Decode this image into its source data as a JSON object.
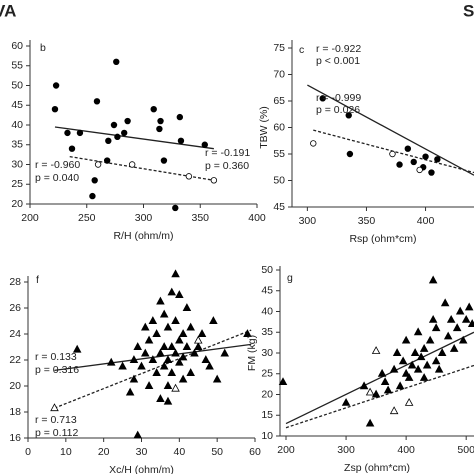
{
  "header": {
    "left": "VA",
    "right": "S"
  },
  "chart_data": [
    {
      "type": "scatter",
      "panel_label": "b",
      "xlabel": "R/H (ohm/m)",
      "xlim": [
        200,
        400
      ],
      "xticks": [
        200,
        250,
        300,
        350,
        400
      ],
      "ylim": [
        20,
        60
      ],
      "yticks": [
        20,
        25,
        30,
        35,
        40,
        45,
        50,
        55,
        60
      ],
      "series": [
        {
          "marker": "circle",
          "filled": true,
          "color": "#000000",
          "x": [
            222,
            223,
            233,
            237,
            244,
            255,
            257,
            259,
            268,
            269,
            274,
            276,
            277,
            283,
            286,
            309,
            314,
            315,
            318,
            328,
            332,
            333,
            354
          ],
          "values": [
            44,
            50,
            38,
            34,
            38,
            22,
            26,
            46,
            31,
            36,
            40,
            56,
            37,
            38,
            41,
            44,
            39,
            41,
            31,
            19,
            42,
            36,
            35
          ]
        },
        {
          "marker": "circle",
          "filled": false,
          "color": "#000000",
          "x": [
            260,
            290,
            340,
            362
          ],
          "values": [
            30,
            30,
            27,
            26
          ]
        }
      ],
      "fits": [
        {
          "style": "solid",
          "x": [
            222,
            362
          ],
          "values": [
            39.5,
            34
          ]
        },
        {
          "style": "dashed",
          "x": [
            235,
            362
          ],
          "values": [
            32,
            26
          ]
        }
      ],
      "annotations": [
        "r = -0.191",
        "p = 0.360",
        "r = -0.960",
        "p = 0.040"
      ]
    },
    {
      "type": "scatter",
      "panel_label": "c",
      "xlabel": "Rsp (ohm*cm)",
      "ylabel": "TBW (%)",
      "xlim": [
        287,
        441
      ],
      "xticks": [
        300,
        350,
        400
      ],
      "ylim": [
        45,
        75
      ],
      "yticks": [
        45,
        50,
        55,
        60,
        65,
        70,
        75
      ],
      "series": [
        {
          "marker": "circle",
          "filled": true,
          "color": "#000000",
          "x": [
            313,
            335,
            336,
            378,
            385,
            390,
            398,
            400,
            405,
            410
          ],
          "values": [
            65.5,
            62.3,
            55,
            53,
            56,
            53.5,
            52.5,
            54.5,
            51.5,
            54
          ]
        },
        {
          "marker": "circle",
          "filled": false,
          "color": "#000000",
          "x": [
            305,
            372,
            395
          ],
          "values": [
            57,
            55,
            52
          ]
        }
      ],
      "fits": [
        {
          "style": "solid",
          "x": [
            300,
            441
          ],
          "values": [
            68,
            51
          ]
        },
        {
          "style": "dashed",
          "x": [
            305,
            441
          ],
          "values": [
            59.5,
            51.5
          ]
        }
      ],
      "annotations": [
        "r = -0.922",
        "p < 0.001",
        "r = -0.999",
        "p = 0.026"
      ]
    },
    {
      "type": "scatter",
      "panel_label": "f",
      "xlabel": "Xc/H (ohm/m)",
      "xlim": [
        0,
        60
      ],
      "xticks": [
        0,
        10,
        20,
        30,
        40,
        50,
        60
      ],
      "ylim": [
        16,
        28
      ],
      "yticks": [
        16,
        18,
        20,
        22,
        24,
        26,
        28
      ],
      "series": [
        {
          "marker": "triangle",
          "filled": true,
          "color": "#000000",
          "x": [
            13,
            22,
            25,
            27,
            28,
            28,
            29,
            29,
            30,
            31,
            31,
            32,
            32,
            33,
            33,
            34,
            34,
            35,
            35,
            35,
            36,
            36,
            36,
            37,
            37,
            37,
            38,
            38,
            38,
            39,
            39,
            39,
            40,
            40,
            40,
            41,
            41,
            41,
            42,
            42,
            43,
            43,
            44,
            45,
            46,
            47,
            48,
            49,
            50,
            52,
            58,
            37
          ],
          "values": [
            22.8,
            21.8,
            21.5,
            19.5,
            22,
            20.5,
            23,
            16.2,
            21.5,
            22.5,
            24.5,
            20,
            23.5,
            22,
            25,
            21,
            24,
            22.5,
            19,
            26.5,
            23,
            21.5,
            25.5,
            22,
            20,
            24.5,
            27.2,
            23,
            21,
            22.5,
            28.6,
            25,
            23.5,
            21.8,
            27,
            20.5,
            24,
            22.2,
            23,
            26,
            21,
            24.5,
            22.5,
            23,
            24,
            22,
            21.5,
            25,
            20.5,
            22.5,
            24,
            18.8
          ]
        },
        {
          "marker": "triangle",
          "filled": false,
          "color": "#000000",
          "x": [
            7,
            45,
            39
          ],
          "values": [
            18.3,
            23.5,
            19.8
          ]
        }
      ],
      "fits": [
        {
          "style": "solid",
          "x": [
            7,
            59
          ],
          "values": [
            21.2,
            23.2
          ]
        },
        {
          "style": "dashed",
          "x": [
            7,
            59
          ],
          "values": [
            18.3,
            24.3
          ]
        }
      ],
      "annotations": [
        "r = 0.133",
        "p = 0.316",
        "r = 0.713",
        "p = 0.112"
      ]
    },
    {
      "type": "scatter",
      "panel_label": "g",
      "xlabel": "Zsp (ohm*cm)",
      "ylabel": "FM (kg)",
      "xlim": [
        190,
        513
      ],
      "xticks": [
        200,
        300,
        400,
        500
      ],
      "ylim": [
        10,
        50
      ],
      "yticks": [
        10,
        15,
        20,
        25,
        30,
        35,
        40,
        45,
        50
      ],
      "series": [
        {
          "marker": "triangle",
          "filled": true,
          "color": "#000000",
          "x": [
            195,
            300,
            330,
            340,
            350,
            360,
            365,
            370,
            380,
            385,
            390,
            395,
            400,
            400,
            405,
            410,
            415,
            420,
            420,
            425,
            430,
            430,
            435,
            440,
            445,
            450,
            450,
            455,
            460,
            465,
            470,
            475,
            480,
            485,
            490,
            495,
            500,
            505,
            510,
            445
          ],
          "values": [
            23,
            18,
            22,
            13,
            20,
            25,
            23,
            21,
            26,
            30,
            22,
            28,
            25,
            33,
            24,
            27,
            30,
            26,
            35,
            29,
            24,
            31,
            27,
            33,
            47.5,
            28,
            36,
            26,
            30,
            42,
            34,
            38,
            31,
            36,
            40,
            33,
            38,
            41,
            37,
            38
          ]
        },
        {
          "marker": "triangle",
          "filled": false,
          "color": "#000000",
          "x": [
            340,
            350,
            380,
            405
          ],
          "values": [
            20.5,
            30.5,
            16,
            18
          ]
        }
      ],
      "fits": [
        {
          "style": "solid",
          "x": [
            200,
            513
          ],
          "values": [
            13,
            35
          ]
        },
        {
          "style": "dashed",
          "x": [
            200,
            513
          ],
          "values": [
            12,
            27
          ]
        }
      ],
      "annotations": []
    }
  ]
}
